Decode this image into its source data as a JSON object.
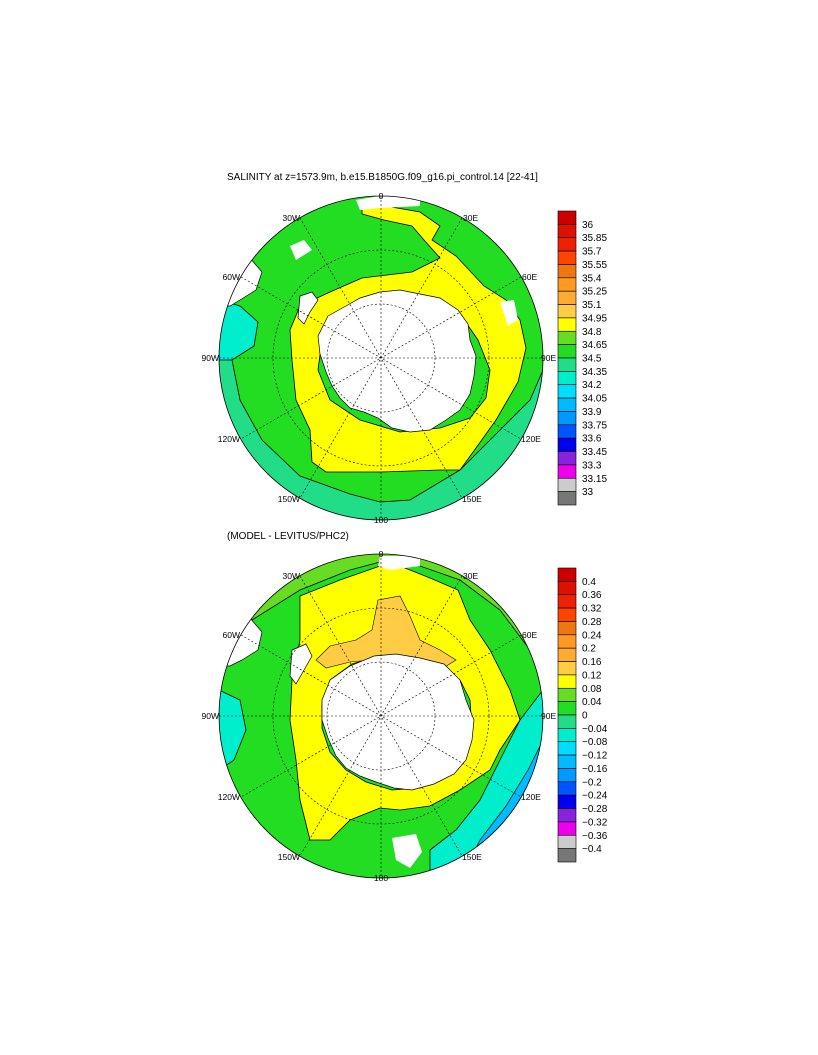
{
  "panel1": {
    "title": "SALINITY at z=1573.9m, b.e15.B1850G.f09_g16.pi_control.14 [22-41]",
    "colorbar": {
      "labels": [
        "36",
        "35.85",
        "35.7",
        "35.55",
        "35.4",
        "35.25",
        "35.1",
        "34.95",
        "34.8",
        "34.65",
        "34.5",
        "34.35",
        "34.2",
        "34.05",
        "33.9",
        "33.75",
        "33.6",
        "33.45",
        "33.3",
        "33.15",
        "33"
      ]
    }
  },
  "panel2": {
    "title": "(MODEL - LEVITUS/PHC2)",
    "colorbar": {
      "labels": [
        "0.4",
        "0.36",
        "0.32",
        "0.28",
        "0.24",
        "0.2",
        "0.16",
        "0.12",
        "0.08",
        "0.04",
        "0",
        "−0.04",
        "−0.08",
        "−0.12",
        "−0.16",
        "−0.2",
        "−0.24",
        "−0.28",
        "−0.32",
        "−0.36",
        "−0.4"
      ]
    }
  },
  "map_labels": {
    "north": "0",
    "ne30": "30E",
    "ne60": "60E",
    "east": "90E",
    "se120": "120E",
    "se150": "150E",
    "south": "180",
    "sw150": "150W",
    "sw120": "120W",
    "west": "90W",
    "nw60": "60W",
    "nw30": "30W"
  },
  "colors": {
    "colorbar_swatches": [
      "#cc0000",
      "#dd1100",
      "#ee2200",
      "#ff4400",
      "#ee7711",
      "#ff9922",
      "#ffaa33",
      "#ffcc44",
      "#ffff00",
      "#66dd22",
      "#22dd22",
      "#22dd88",
      "#00eecc",
      "#00ddff",
      "#00bbff",
      "#0099ff",
      "#0055ff",
      "#0000ee",
      "#8822dd",
      "#ee00ee",
      "#cccccc",
      "#777777"
    ],
    "land": "#ffffff",
    "contour": "#000000"
  }
}
